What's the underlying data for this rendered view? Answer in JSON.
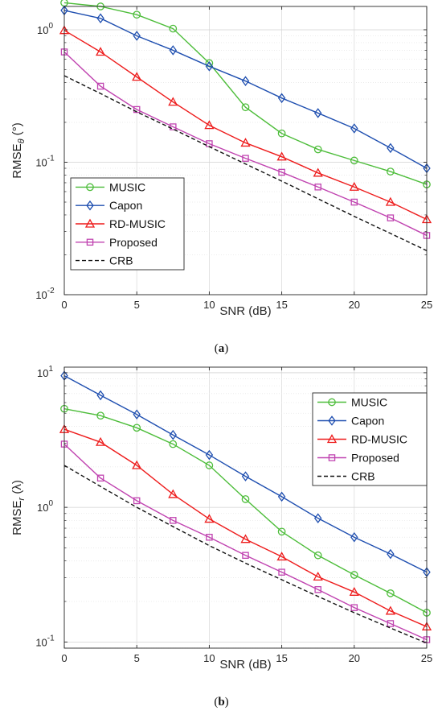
{
  "chart_data": [
    {
      "type": "line",
      "caption": "(a)",
      "xlabel": "SNR (dB)",
      "ylabel": "RMSE",
      "ylabel_sub": "θ",
      "ylabel_unit": " (°)",
      "y_scale": "log",
      "xlim": [
        0,
        25
      ],
      "ylim": [
        0.01,
        1.5
      ],
      "x_ticks": [
        "0",
        "5",
        "10",
        "15",
        "20",
        "25"
      ],
      "y_ticks": [
        {
          "base": "10",
          "exp": "0",
          "value": 1
        },
        {
          "base": "10",
          "exp": "-1",
          "value": 0.1
        },
        {
          "base": "10",
          "exp": "-2",
          "value": 0.01
        }
      ],
      "grid": true,
      "legend_position": "bottom-left",
      "x": [
        0,
        2.5,
        5,
        7.5,
        10,
        12.5,
        15,
        17.5,
        20,
        22.5,
        25
      ],
      "series": [
        {
          "name": "MUSIC",
          "color": "#4dbd3a",
          "marker": "circle",
          "values": [
            1.6,
            1.5,
            1.3,
            1.02,
            0.56,
            0.26,
            0.165,
            0.125,
            0.103,
            0.085,
            0.068
          ]
        },
        {
          "name": "Capon",
          "color": "#1f4fb0",
          "marker": "diamond",
          "values": [
            1.4,
            1.22,
            0.9,
            0.7,
            0.53,
            0.41,
            0.305,
            0.235,
            0.18,
            0.128,
            0.09
          ]
        },
        {
          "name": "RD-MUSIC",
          "color": "#ee1c1c",
          "marker": "triangle",
          "values": [
            0.99,
            0.68,
            0.44,
            0.285,
            0.19,
            0.14,
            0.11,
            0.083,
            0.065,
            0.05,
            0.037
          ]
        },
        {
          "name": "Proposed",
          "color": "#c043b0",
          "marker": "square",
          "values": [
            0.68,
            0.375,
            0.25,
            0.185,
            0.138,
            0.107,
            0.084,
            0.065,
            0.05,
            0.038,
            0.028
          ]
        },
        {
          "name": "CRB",
          "color": "#111111",
          "marker": "none",
          "dashed": true,
          "values": [
            0.45,
            0.33,
            0.24,
            0.178,
            0.131,
            0.097,
            0.072,
            0.053,
            0.039,
            0.029,
            0.0215
          ]
        }
      ]
    },
    {
      "type": "line",
      "caption": "(b)",
      "xlabel": "SNR (dB)",
      "ylabel": "RMSE",
      "ylabel_sub": "r",
      "ylabel_unit": " (λ)",
      "y_scale": "log",
      "xlim": [
        0,
        25
      ],
      "ylim": [
        0.09,
        11
      ],
      "x_ticks": [
        "0",
        "5",
        "10",
        "15",
        "20",
        "25"
      ],
      "y_ticks": [
        {
          "base": "10",
          "exp": "1",
          "value": 10
        },
        {
          "base": "10",
          "exp": "0",
          "value": 1
        },
        {
          "base": "10",
          "exp": "-1",
          "value": 0.1
        }
      ],
      "grid": true,
      "legend_position": "top-right",
      "x": [
        0,
        2.5,
        5,
        7.5,
        10,
        12.5,
        15,
        17.5,
        20,
        22.5,
        25
      ],
      "series": [
        {
          "name": "MUSIC",
          "color": "#4dbd3a",
          "marker": "circle",
          "values": [
            5.4,
            4.8,
            3.9,
            2.95,
            2.05,
            1.15,
            0.66,
            0.44,
            0.315,
            0.23,
            0.165
          ]
        },
        {
          "name": "Capon",
          "color": "#1f4fb0",
          "marker": "diamond",
          "values": [
            9.5,
            6.8,
            4.9,
            3.45,
            2.45,
            1.7,
            1.2,
            0.83,
            0.6,
            0.45,
            0.33
          ]
        },
        {
          "name": "RD-MUSIC",
          "color": "#ee1c1c",
          "marker": "triangle",
          "values": [
            3.8,
            3.05,
            2.05,
            1.25,
            0.82,
            0.58,
            0.43,
            0.305,
            0.235,
            0.17,
            0.13
          ]
        },
        {
          "name": "Proposed",
          "color": "#c043b0",
          "marker": "square",
          "values": [
            2.95,
            1.65,
            1.12,
            0.8,
            0.6,
            0.44,
            0.33,
            0.245,
            0.18,
            0.137,
            0.104
          ]
        },
        {
          "name": "CRB",
          "color": "#111111",
          "marker": "none",
          "dashed": true,
          "values": [
            2.05,
            1.43,
            1.0,
            0.72,
            0.52,
            0.385,
            0.29,
            0.218,
            0.165,
            0.127,
            0.098
          ]
        }
      ]
    }
  ]
}
